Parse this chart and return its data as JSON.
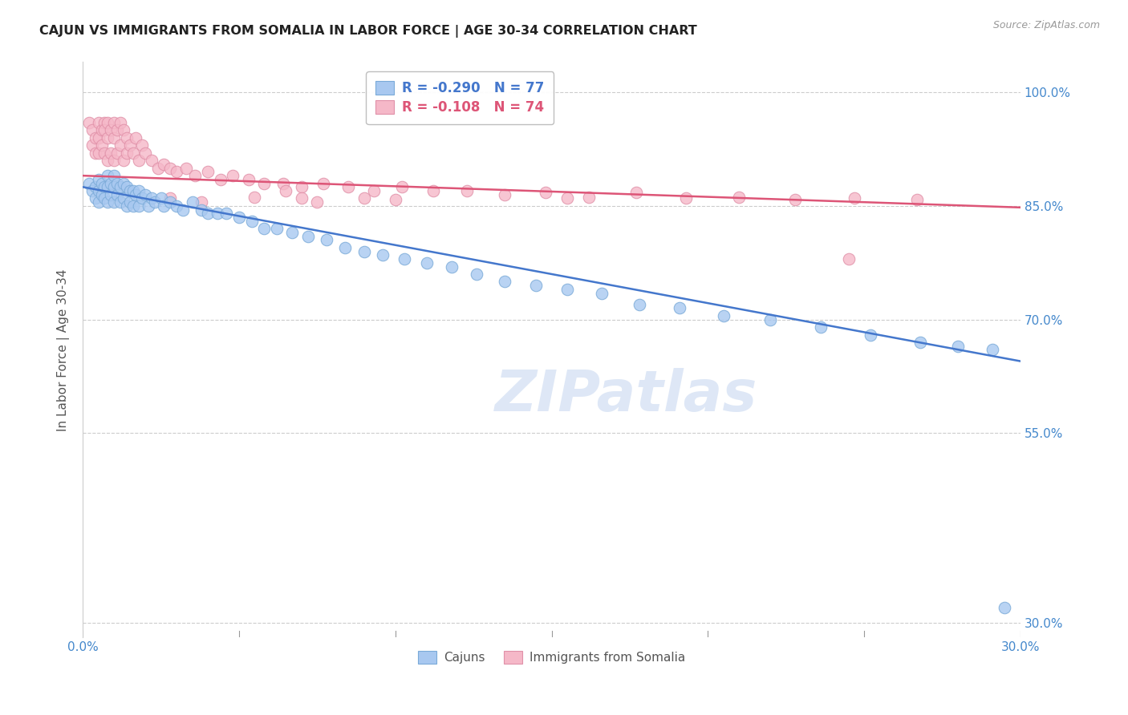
{
  "title": "CAJUN VS IMMIGRANTS FROM SOMALIA IN LABOR FORCE | AGE 30-34 CORRELATION CHART",
  "source": "Source: ZipAtlas.com",
  "ylabel": "In Labor Force | Age 30-34",
  "xlim": [
    0.0,
    0.3
  ],
  "ylim": [
    0.28,
    1.04
  ],
  "yticks": [
    0.3,
    0.55,
    0.7,
    0.85,
    1.0
  ],
  "ytick_labels": [
    "30.0%",
    "55.0%",
    "70.0%",
    "85.0%",
    "100.0%"
  ],
  "xticks": [
    0.0,
    0.05,
    0.1,
    0.15,
    0.2,
    0.25,
    0.3
  ],
  "xtick_labels": [
    "0.0%",
    "",
    "",
    "",
    "",
    "",
    "30.0%"
  ],
  "legend_blue_r": "-0.290",
  "legend_blue_n": "77",
  "legend_pink_r": "-0.108",
  "legend_pink_n": "74",
  "blue_color": "#A8C8F0",
  "blue_edge": "#7AAAD8",
  "pink_color": "#F5B8C8",
  "pink_edge": "#E090A8",
  "blue_line_color": "#4477CC",
  "pink_line_color": "#DD5577",
  "title_color": "#222222",
  "axis_label_color": "#555555",
  "tick_label_color": "#4488CC",
  "grid_color": "#CCCCCC",
  "watermark_color": "#C8D8F0",
  "blue_line_x0": 0.0,
  "blue_line_x1": 0.3,
  "blue_line_y0": 0.875,
  "blue_line_y1": 0.645,
  "pink_line_x0": 0.0,
  "pink_line_x1": 0.3,
  "pink_line_y0": 0.89,
  "pink_line_y1": 0.848,
  "cajuns_x": [
    0.002,
    0.003,
    0.004,
    0.004,
    0.005,
    0.005,
    0.005,
    0.006,
    0.006,
    0.007,
    0.007,
    0.008,
    0.008,
    0.008,
    0.009,
    0.009,
    0.01,
    0.01,
    0.01,
    0.011,
    0.011,
    0.012,
    0.012,
    0.013,
    0.013,
    0.014,
    0.014,
    0.015,
    0.015,
    0.016,
    0.016,
    0.017,
    0.018,
    0.018,
    0.019,
    0.02,
    0.021,
    0.022,
    0.023,
    0.025,
    0.026,
    0.028,
    0.03,
    0.032,
    0.035,
    0.038,
    0.04,
    0.043,
    0.046,
    0.05,
    0.054,
    0.058,
    0.062,
    0.067,
    0.072,
    0.078,
    0.084,
    0.09,
    0.096,
    0.103,
    0.11,
    0.118,
    0.126,
    0.135,
    0.145,
    0.155,
    0.166,
    0.178,
    0.191,
    0.205,
    0.22,
    0.236,
    0.252,
    0.268,
    0.28,
    0.291,
    0.295
  ],
  "cajuns_y": [
    0.88,
    0.87,
    0.875,
    0.86,
    0.885,
    0.87,
    0.855,
    0.88,
    0.865,
    0.875,
    0.86,
    0.89,
    0.875,
    0.855,
    0.88,
    0.865,
    0.89,
    0.875,
    0.855,
    0.88,
    0.865,
    0.875,
    0.855,
    0.88,
    0.86,
    0.875,
    0.85,
    0.87,
    0.855,
    0.87,
    0.85,
    0.865,
    0.87,
    0.85,
    0.86,
    0.865,
    0.85,
    0.86,
    0.855,
    0.86,
    0.85,
    0.855,
    0.85,
    0.845,
    0.855,
    0.845,
    0.84,
    0.84,
    0.84,
    0.835,
    0.83,
    0.82,
    0.82,
    0.815,
    0.81,
    0.805,
    0.795,
    0.79,
    0.785,
    0.78,
    0.775,
    0.77,
    0.76,
    0.75,
    0.745,
    0.74,
    0.735,
    0.72,
    0.715,
    0.705,
    0.7,
    0.69,
    0.68,
    0.67,
    0.665,
    0.66,
    0.32
  ],
  "somalia_x": [
    0.002,
    0.003,
    0.003,
    0.004,
    0.004,
    0.005,
    0.005,
    0.005,
    0.006,
    0.006,
    0.007,
    0.007,
    0.007,
    0.008,
    0.008,
    0.008,
    0.009,
    0.009,
    0.01,
    0.01,
    0.01,
    0.011,
    0.011,
    0.012,
    0.012,
    0.013,
    0.013,
    0.014,
    0.014,
    0.015,
    0.016,
    0.017,
    0.018,
    0.019,
    0.02,
    0.022,
    0.024,
    0.026,
    0.028,
    0.03,
    0.033,
    0.036,
    0.04,
    0.044,
    0.048,
    0.053,
    0.058,
    0.064,
    0.07,
    0.077,
    0.085,
    0.093,
    0.102,
    0.112,
    0.123,
    0.135,
    0.148,
    0.162,
    0.177,
    0.193,
    0.21,
    0.228,
    0.247,
    0.267,
    0.245,
    0.155,
    0.065,
    0.075,
    0.055,
    0.09,
    0.1,
    0.07,
    0.038,
    0.028
  ],
  "somalia_y": [
    0.96,
    0.95,
    0.93,
    0.94,
    0.92,
    0.96,
    0.94,
    0.92,
    0.95,
    0.93,
    0.96,
    0.95,
    0.92,
    0.96,
    0.94,
    0.91,
    0.95,
    0.92,
    0.96,
    0.94,
    0.91,
    0.95,
    0.92,
    0.96,
    0.93,
    0.95,
    0.91,
    0.94,
    0.92,
    0.93,
    0.92,
    0.94,
    0.91,
    0.93,
    0.92,
    0.91,
    0.9,
    0.905,
    0.9,
    0.895,
    0.9,
    0.89,
    0.895,
    0.885,
    0.89,
    0.885,
    0.88,
    0.88,
    0.875,
    0.88,
    0.875,
    0.87,
    0.875,
    0.87,
    0.87,
    0.865,
    0.868,
    0.862,
    0.868,
    0.86,
    0.862,
    0.858,
    0.86,
    0.858,
    0.78,
    0.86,
    0.87,
    0.855,
    0.862,
    0.86,
    0.858,
    0.86,
    0.855,
    0.86
  ]
}
